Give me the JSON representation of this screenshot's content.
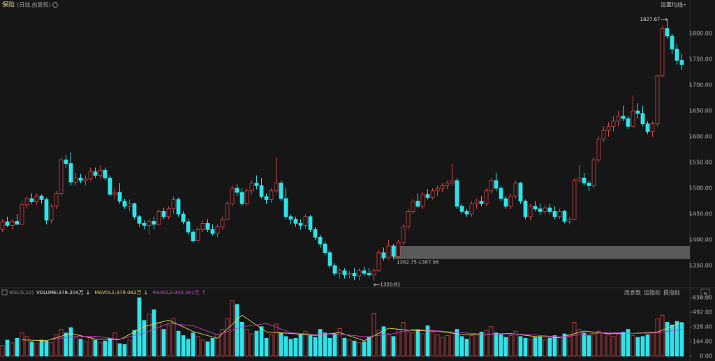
{
  "header": {
    "title": "保险",
    "subtitle": "(日线,前复权)",
    "settings": "设置均线"
  },
  "chart_data": {
    "type": "candlestick",
    "up_color": "#d0454a",
    "down_color": "#2fe3ea",
    "candles": [
      [
        1420,
        1440,
        1415,
        1435
      ],
      [
        1435,
        1445,
        1425,
        1428
      ],
      [
        1428,
        1440,
        1420,
        1436
      ],
      [
        1436,
        1450,
        1430,
        1430
      ],
      [
        1430,
        1475,
        1428,
        1468
      ],
      [
        1468,
        1485,
        1460,
        1480
      ],
      [
        1480,
        1490,
        1470,
        1474
      ],
      [
        1474,
        1490,
        1468,
        1485
      ],
      [
        1485,
        1488,
        1470,
        1478
      ],
      [
        1478,
        1482,
        1430,
        1438
      ],
      [
        1438,
        1470,
        1432,
        1465
      ],
      [
        1465,
        1495,
        1460,
        1490
      ],
      [
        1490,
        1560,
        1485,
        1555
      ],
      [
        1555,
        1565,
        1540,
        1548
      ],
      [
        1548,
        1570,
        1505,
        1512
      ],
      [
        1512,
        1530,
        1505,
        1520
      ],
      [
        1520,
        1528,
        1510,
        1515
      ],
      [
        1515,
        1525,
        1505,
        1518
      ],
      [
        1518,
        1540,
        1515,
        1532
      ],
      [
        1532,
        1540,
        1520,
        1525
      ],
      [
        1525,
        1545,
        1518,
        1535
      ],
      [
        1535,
        1540,
        1515,
        1520
      ],
      [
        1520,
        1525,
        1485,
        1488
      ],
      [
        1488,
        1500,
        1478,
        1492
      ],
      [
        1492,
        1510,
        1470,
        1475
      ],
      [
        1475,
        1480,
        1460,
        1465
      ],
      [
        1465,
        1478,
        1455,
        1470
      ],
      [
        1470,
        1472,
        1440,
        1445
      ],
      [
        1445,
        1448,
        1425,
        1432
      ],
      [
        1432,
        1438,
        1420,
        1428
      ],
      [
        1428,
        1440,
        1410,
        1436
      ],
      [
        1436,
        1445,
        1420,
        1430
      ],
      [
        1430,
        1460,
        1428,
        1455
      ],
      [
        1455,
        1462,
        1440,
        1445
      ],
      [
        1445,
        1465,
        1440,
        1460
      ],
      [
        1460,
        1485,
        1450,
        1478
      ],
      [
        1478,
        1482,
        1445,
        1450
      ],
      [
        1450,
        1455,
        1430,
        1435
      ],
      [
        1435,
        1440,
        1410,
        1415
      ],
      [
        1415,
        1420,
        1395,
        1398
      ],
      [
        1398,
        1425,
        1395,
        1420
      ],
      [
        1420,
        1438,
        1415,
        1432
      ],
      [
        1432,
        1440,
        1415,
        1420
      ],
      [
        1420,
        1430,
        1408,
        1412
      ],
      [
        1412,
        1430,
        1405,
        1425
      ],
      [
        1425,
        1445,
        1420,
        1440
      ],
      [
        1440,
        1475,
        1438,
        1470
      ],
      [
        1470,
        1505,
        1465,
        1500
      ],
      [
        1500,
        1508,
        1485,
        1492
      ],
      [
        1492,
        1500,
        1465,
        1470
      ],
      [
        1470,
        1500,
        1465,
        1495
      ],
      [
        1495,
        1515,
        1488,
        1510
      ],
      [
        1510,
        1525,
        1498,
        1505
      ],
      [
        1505,
        1520,
        1480,
        1484
      ],
      [
        1484,
        1490,
        1470,
        1478
      ],
      [
        1478,
        1500,
        1472,
        1495
      ],
      [
        1495,
        1560,
        1490,
        1510
      ],
      [
        1510,
        1515,
        1475,
        1480
      ],
      [
        1480,
        1500,
        1440,
        1445
      ],
      [
        1445,
        1450,
        1430,
        1440
      ],
      [
        1440,
        1445,
        1425,
        1432
      ],
      [
        1432,
        1440,
        1420,
        1428
      ],
      [
        1428,
        1450,
        1422,
        1445
      ],
      [
        1445,
        1448,
        1415,
        1420
      ],
      [
        1420,
        1425,
        1400,
        1405
      ],
      [
        1405,
        1410,
        1385,
        1392
      ],
      [
        1392,
        1398,
        1370,
        1375
      ],
      [
        1375,
        1380,
        1345,
        1350
      ],
      [
        1350,
        1355,
        1330,
        1335
      ],
      [
        1335,
        1345,
        1325,
        1340
      ],
      [
        1340,
        1345,
        1325,
        1332
      ],
      [
        1332,
        1340,
        1325,
        1335
      ],
      [
        1335,
        1345,
        1322,
        1330
      ],
      [
        1330,
        1345,
        1321,
        1340
      ],
      [
        1340,
        1348,
        1330,
        1335
      ],
      [
        1335,
        1345,
        1328,
        1332
      ],
      [
        1332,
        1345,
        1320.81,
        1340
      ],
      [
        1340,
        1380,
        1338,
        1375
      ],
      [
        1375,
        1385,
        1360,
        1365
      ],
      [
        1365,
        1400,
        1362,
        1388
      ],
      [
        1388,
        1392,
        1362,
        1368
      ],
      [
        1368,
        1400,
        1365,
        1395
      ],
      [
        1395,
        1430,
        1390,
        1425
      ],
      [
        1425,
        1460,
        1420,
        1455
      ],
      [
        1455,
        1480,
        1450,
        1475
      ],
      [
        1475,
        1490,
        1462,
        1465
      ],
      [
        1465,
        1492,
        1460,
        1488
      ],
      [
        1488,
        1498,
        1478,
        1482
      ],
      [
        1482,
        1500,
        1478,
        1495
      ],
      [
        1495,
        1505,
        1485,
        1500
      ],
      [
        1500,
        1510,
        1492,
        1505
      ],
      [
        1505,
        1515,
        1498,
        1510
      ],
      [
        1510,
        1548,
        1505,
        1515
      ],
      [
        1515,
        1520,
        1460,
        1465
      ],
      [
        1465,
        1470,
        1450,
        1455
      ],
      [
        1455,
        1460,
        1445,
        1450
      ],
      [
        1450,
        1475,
        1445,
        1470
      ],
      [
        1470,
        1480,
        1460,
        1475
      ],
      [
        1475,
        1485,
        1465,
        1470
      ],
      [
        1470,
        1500,
        1465,
        1495
      ],
      [
        1495,
        1520,
        1490,
        1515
      ],
      [
        1515,
        1530,
        1495,
        1500
      ],
      [
        1500,
        1505,
        1475,
        1480
      ],
      [
        1480,
        1485,
        1460,
        1465
      ],
      [
        1465,
        1490,
        1460,
        1485
      ],
      [
        1485,
        1515,
        1480,
        1510
      ],
      [
        1510,
        1512,
        1470,
        1475
      ],
      [
        1475,
        1478,
        1440,
        1445
      ],
      [
        1445,
        1470,
        1438,
        1465
      ],
      [
        1465,
        1475,
        1455,
        1460
      ],
      [
        1460,
        1470,
        1448,
        1455
      ],
      [
        1455,
        1468,
        1450,
        1462
      ],
      [
        1462,
        1470,
        1450,
        1455
      ],
      [
        1455,
        1465,
        1440,
        1445
      ],
      [
        1445,
        1460,
        1440,
        1455
      ],
      [
        1455,
        1458,
        1432,
        1436
      ],
      [
        1436,
        1445,
        1430,
        1440
      ],
      [
        1440,
        1520,
        1438,
        1515
      ],
      [
        1515,
        1545,
        1510,
        1520
      ],
      [
        1520,
        1530,
        1505,
        1510
      ],
      [
        1510,
        1515,
        1495,
        1505
      ],
      [
        1505,
        1560,
        1500,
        1555
      ],
      [
        1555,
        1600,
        1550,
        1595
      ],
      [
        1595,
        1620,
        1590,
        1612
      ],
      [
        1612,
        1628,
        1600,
        1620
      ],
      [
        1620,
        1640,
        1610,
        1630
      ],
      [
        1630,
        1650,
        1620,
        1640
      ],
      [
        1640,
        1660,
        1630,
        1635
      ],
      [
        1635,
        1640,
        1615,
        1620
      ],
      [
        1620,
        1680,
        1618,
        1650
      ],
      [
        1650,
        1665,
        1635,
        1645
      ],
      [
        1645,
        1660,
        1620,
        1625
      ],
      [
        1625,
        1630,
        1605,
        1610
      ],
      [
        1610,
        1630,
        1600,
        1625
      ],
      [
        1625,
        1720,
        1620,
        1718
      ],
      [
        1718,
        1815,
        1715,
        1810
      ],
      [
        1810,
        1827.67,
        1790,
        1795
      ],
      [
        1795,
        1800,
        1760,
        1770
      ],
      [
        1770,
        1780,
        1740,
        1748
      ],
      [
        1748,
        1760,
        1730,
        1740
      ]
    ],
    "ylim": [
      1311,
      1865
    ],
    "yticks": [
      {
        "value": 1350,
        "label": "1350.00"
      },
      {
        "value": 1400,
        "label": "1400.00"
      },
      {
        "value": 1450,
        "label": "1450.00"
      },
      {
        "value": 1500,
        "label": "1500.00"
      },
      {
        "value": 1550,
        "label": "1550.00"
      },
      {
        "value": 1600,
        "label": "1600.00"
      },
      {
        "value": 1650,
        "label": "1650.00"
      },
      {
        "value": 1700,
        "label": "1700.00"
      },
      {
        "value": 1750,
        "label": "1750.00"
      },
      {
        "value": 1800,
        "label": "1800.00"
      }
    ],
    "high_label": 1827.67,
    "low_label": 1320.81,
    "band": {
      "low": 1362.75,
      "high": 1387.96,
      "label": "1362.75-1387.96"
    },
    "volume": {
      "title": "VOL(5,10)",
      "labels": [
        {
          "text": "VOLUME:376.204万",
          "color": "#e8e8e8",
          "arrow": "↓"
        },
        {
          "text": "MAVOL1:379.082万",
          "color": "#e8d64a",
          "arrow": "↓"
        },
        {
          "text": "MAVOL2:300.561万",
          "color": "#e040e0",
          "arrow": "↑"
        }
      ],
      "values": [
        120,
        180,
        150,
        200,
        260,
        220,
        160,
        140,
        180,
        170,
        150,
        240,
        300,
        260,
        320,
        220,
        190,
        160,
        210,
        180,
        150,
        170,
        200,
        260,
        140,
        130,
        180,
        290,
        656,
        400,
        470,
        520,
        380,
        300,
        350,
        420,
        280,
        230,
        190,
        260,
        220,
        180,
        160,
        200,
        240,
        300,
        420,
        620,
        580,
        380,
        300,
        250,
        280,
        330,
        200,
        240,
        360,
        260,
        220,
        190,
        200,
        240,
        280,
        230,
        210,
        300,
        260,
        200,
        250,
        310,
        200,
        180,
        170,
        150,
        160,
        210,
        480,
        290,
        330,
        250,
        220,
        300,
        380,
        280,
        260,
        300,
        250,
        340,
        270,
        240,
        210,
        230,
        260,
        300,
        220,
        190,
        230,
        250,
        270,
        290,
        330,
        260,
        240,
        210,
        230,
        280,
        220,
        200,
        190,
        210,
        220,
        180,
        200,
        230,
        210,
        250,
        220,
        380,
        300,
        260,
        230,
        250,
        280,
        260,
        240,
        220,
        250,
        270,
        300,
        230,
        210,
        220,
        240,
        260,
        420,
        460,
        380,
        350,
        390,
        376.204
      ],
      "ylim": [
        0,
        680
      ],
      "yticks": [
        {
          "value": 0,
          "label": "0.00"
        },
        {
          "value": 164,
          "label": "164.00"
        },
        {
          "value": 328,
          "label": "328.00"
        },
        {
          "value": 492,
          "label": "492.00"
        },
        {
          "value": 656,
          "label": "656.00"
        }
      ],
      "lines": [
        {
          "color": "#e8d64a",
          "x": [
            4,
            9,
            14,
            19,
            24,
            29,
            34,
            39,
            44,
            49,
            54,
            59,
            64,
            69,
            74,
            79,
            84,
            89,
            94,
            99,
            104,
            109,
            114,
            119,
            124,
            129,
            134,
            139
          ],
          "values": [
            182,
            174,
            254,
            192,
            184,
            331,
            404,
            276,
            200,
            460,
            272,
            254,
            232,
            264,
            172,
            312,
            288,
            280,
            244,
            246,
            254,
            220,
            208,
            282,
            252,
            254,
            270,
            379.082
          ]
        },
        {
          "color": "#c83cc8",
          "x": [
            9,
            14,
            19,
            24,
            29,
            34,
            39,
            44,
            49,
            54,
            59,
            64,
            69,
            74,
            79,
            84,
            89,
            94,
            99,
            104,
            109,
            114,
            119,
            124,
            129,
            134,
            139
          ],
          "values": [
            178,
            214,
            223,
            188,
            258,
            368,
            340,
            238,
            330,
            366,
            263,
            243,
            248,
            218,
            242,
            300,
            284,
            262,
            245,
            250,
            237,
            214,
            245,
            267,
            253,
            262,
            300.561
          ]
        }
      ]
    },
    "toolbar": [
      "改参数",
      "加指标",
      "换指标"
    ]
  }
}
